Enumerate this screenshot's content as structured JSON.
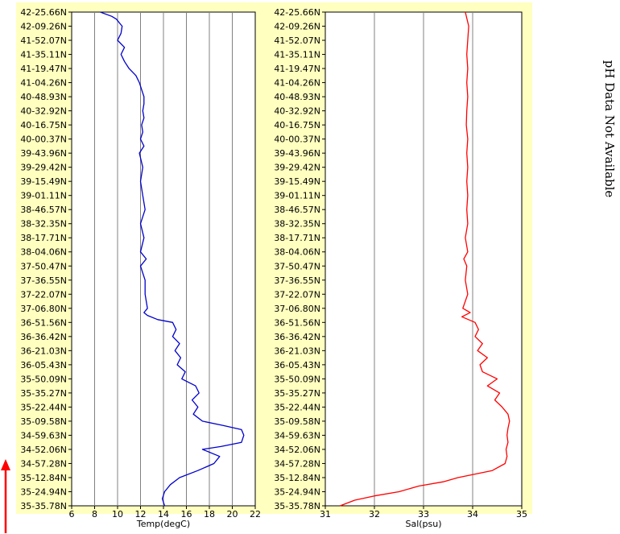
{
  "note": "pH Data Not Available",
  "arrow_color": "#ff0000",
  "chart_data": [
    {
      "type": "line",
      "name": "temperature-panel",
      "xlabel": "Temp(degC)",
      "ylabel": "",
      "xlim": [
        6,
        22
      ],
      "xticks": [
        6,
        8,
        10,
        12,
        14,
        16,
        18,
        20,
        22
      ],
      "grid": true,
      "background": "#ffffc0",
      "line_color": "#0000cc",
      "ytick_labels": [
        "42-25.66N",
        "42-09.26N",
        "41-52.07N",
        "41-35.11N",
        "41-19.47N",
        "41-04.26N",
        "40-48.93N",
        "40-32.92N",
        "40-16.75N",
        "40-00.37N",
        "39-43.96N",
        "39-29.42N",
        "39-15.49N",
        "39-01.11N",
        "38-46.57N",
        "38-32.35N",
        "38-17.71N",
        "38-04.06N",
        "37-50.47N",
        "37-36.55N",
        "37-22.07N",
        "37-06.80N",
        "36-51.56N",
        "36-36.42N",
        "36-21.03N",
        "36-05.43N",
        "35-50.09N",
        "35-35.27N",
        "35-22.44N",
        "35-09.58N",
        "34-59.63N",
        "34-52.06N",
        "34-57.28N",
        "35-12.84N",
        "35-24.94N",
        "35-35.78N"
      ],
      "series": [
        {
          "y": [
            0,
            0.3,
            0.5,
            0.8,
            1,
            1.5,
            2,
            2.5,
            3,
            3.5,
            4,
            4.5,
            5,
            5.5,
            6,
            6.5,
            7,
            7.5,
            8,
            8.5,
            9,
            9.5,
            10,
            11,
            12,
            13,
            14,
            15,
            16,
            17,
            17.5,
            18,
            19,
            20,
            21,
            21.3,
            21.5,
            21.8,
            22,
            22.5,
            23,
            23.5,
            24,
            24.5,
            25,
            25.5,
            26,
            26.5,
            27,
            27.5,
            28,
            28.5,
            29,
            29.3,
            29.6,
            30,
            30.5,
            30.8,
            31,
            31.5,
            32,
            32.5,
            33,
            33.5,
            34,
            34.5,
            35
          ],
          "x": [
            8.5,
            9.5,
            9.9,
            10.2,
            10.4,
            10.3,
            10.0,
            10.6,
            10.3,
            10.6,
            11.0,
            11.6,
            11.9,
            12.1,
            12.3,
            12.3,
            12.2,
            12.3,
            12.1,
            12.2,
            12.0,
            12.3,
            11.9,
            12.2,
            12.0,
            12.2,
            12.4,
            12.0,
            12.3,
            12.0,
            12.5,
            12.0,
            12.4,
            12.4,
            12.6,
            12.3,
            12.6,
            13.5,
            14.8,
            15.1,
            14.8,
            15.4,
            15.0,
            15.5,
            15.2,
            15.9,
            15.6,
            16.8,
            17.1,
            16.5,
            17.0,
            16.6,
            17.4,
            19.2,
            20.8,
            21.0,
            20.8,
            19.0,
            17.4,
            18.9,
            18.4,
            17.0,
            15.4,
            14.6,
            14.1,
            13.9,
            14.1
          ]
        }
      ]
    },
    {
      "type": "line",
      "name": "salinity-panel",
      "xlabel": "Sal(psu)",
      "ylabel": "",
      "xlim": [
        31,
        35
      ],
      "xticks": [
        31,
        32,
        33,
        34,
        35
      ],
      "grid": true,
      "background": "#ffffc0",
      "line_color": "#ff0000",
      "ytick_labels": [
        "42-25.66N",
        "42-09.26N",
        "41-52.07N",
        "41-35.11N",
        "41-19.47N",
        "41-04.26N",
        "40-48.93N",
        "40-32.92N",
        "40-16.75N",
        "40-00.37N",
        "39-43.96N",
        "39-29.42N",
        "39-15.49N",
        "39-01.11N",
        "38-46.57N",
        "38-32.35N",
        "38-17.71N",
        "38-04.06N",
        "37-50.47N",
        "37-36.55N",
        "37-22.07N",
        "37-06.80N",
        "36-51.56N",
        "36-36.42N",
        "36-21.03N",
        "36-05.43N",
        "35-50.09N",
        "35-35.27N",
        "35-22.44N",
        "35-09.58N",
        "34-59.63N",
        "34-52.06N",
        "34-57.28N",
        "35-12.84N",
        "35-24.94N",
        "35-35.78N"
      ],
      "series": [
        {
          "y": [
            0,
            1,
            2,
            3,
            4,
            5,
            6,
            7,
            8,
            9,
            10,
            11,
            12,
            13,
            14,
            15,
            16,
            17,
            17.5,
            18,
            19,
            20,
            21,
            21.3,
            21.6,
            22,
            22.5,
            23,
            23.5,
            24,
            24.5,
            25,
            25.5,
            26,
            26.5,
            27,
            27.5,
            28,
            28.5,
            29,
            29.5,
            30,
            30.5,
            31,
            31.5,
            32,
            32.5,
            33,
            33.3,
            33.6,
            34,
            34.3,
            34.6,
            35
          ],
          "x": [
            33.85,
            33.92,
            33.9,
            33.88,
            33.9,
            33.88,
            33.9,
            33.88,
            33.87,
            33.9,
            33.88,
            33.9,
            33.88,
            33.9,
            33.88,
            33.9,
            33.85,
            33.9,
            33.82,
            33.88,
            33.85,
            33.9,
            33.8,
            33.95,
            33.78,
            34.05,
            34.12,
            34.05,
            34.2,
            34.1,
            34.3,
            34.15,
            34.2,
            34.5,
            34.3,
            34.55,
            34.45,
            34.6,
            34.72,
            34.75,
            34.72,
            34.7,
            34.72,
            34.68,
            34.7,
            34.66,
            34.4,
            33.7,
            33.4,
            32.9,
            32.5,
            32.0,
            31.6,
            31.3
          ]
        }
      ]
    }
  ]
}
